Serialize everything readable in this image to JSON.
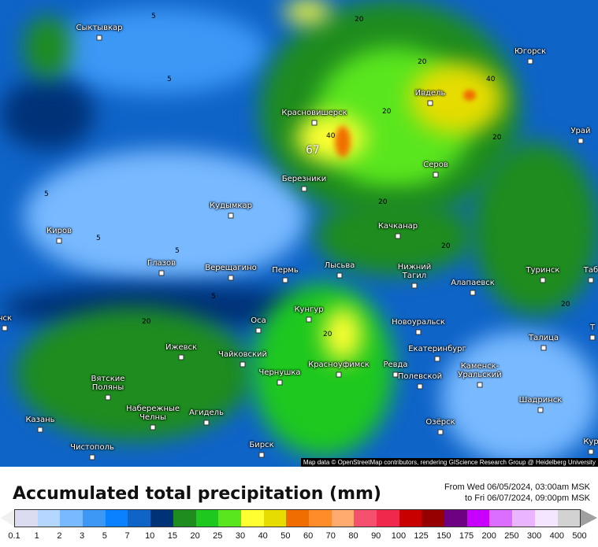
{
  "title": "Accumulated total precipitation (mm)",
  "period": {
    "from": "From Wed 06/05/2024, 03:00am MSK",
    "to": "to Fri 06/07/2024, 09:00pm MSK"
  },
  "attribution": "Map data © OpenStreetMap contributors, rendering GIScience Research Group @ Heidelberg University",
  "legend": {
    "ticks": [
      "0.1",
      "1",
      "2",
      "3",
      "5",
      "7",
      "10",
      "15",
      "20",
      "25",
      "30",
      "40",
      "50",
      "60",
      "70",
      "80",
      "90",
      "100",
      "125",
      "150",
      "175",
      "200",
      "250",
      "300",
      "400",
      "500"
    ],
    "colors": [
      "#dcdcf0",
      "#b4d7ff",
      "#78b9ff",
      "#3c97f5",
      "#0a82ff",
      "#0f64c8",
      "#003278",
      "#1e8c1e",
      "#1ec81e",
      "#5ae61e",
      "#ffff32",
      "#e6dc00",
      "#f06e00",
      "#ff8c28",
      "#ffaa6e",
      "#f5506e",
      "#f0284b",
      "#c80000",
      "#960000",
      "#6e0082",
      "#c800ff",
      "#dc6eff",
      "#ebb4ff",
      "#f5e6ff",
      "#d2d2d2"
    ]
  },
  "cities": [
    "Сыктывкар",
    "Югорск",
    "Ивдель",
    "Красновишерск",
    "Урай",
    "Серов",
    "Березники",
    "Кудымкар",
    "Киров",
    "Качканар",
    "Глазов",
    "Верещагино",
    "Пермь",
    "Лысьва",
    "Нижний Тагил",
    "Алапаевск",
    "Туринск",
    "Таб",
    "Кунгур",
    "Оса",
    "Новоуральск",
    "Талица",
    "Ижевск",
    "Чайковский",
    "Екатеринбург",
    "Красноуфимск",
    "Ревда",
    "Чернушка",
    "Полевской",
    "Каменск-Уральский",
    "Вятские Поляны",
    "Шадринск",
    "Набережные Челны",
    "Агидель",
    "Казань",
    "Озёрск",
    "Чистополь",
    "Бирск",
    "Кур",
    "нск",
    "Т"
  ],
  "contours": [
    "5",
    "5",
    "5",
    "5",
    "5",
    "5",
    "20",
    "20",
    "20",
    "20",
    "20",
    "20",
    "40",
    "40",
    "67",
    "20",
    "20",
    "20"
  ]
}
